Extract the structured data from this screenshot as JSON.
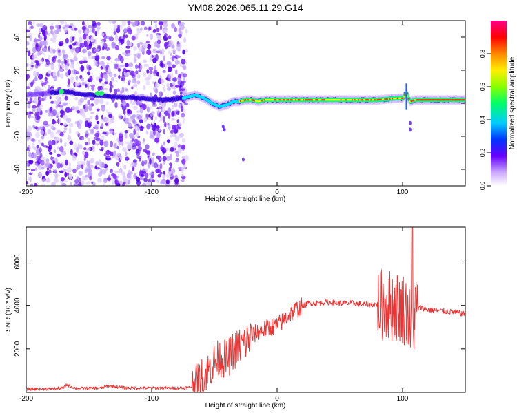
{
  "figure_title": "YM08.2026.065.11.29.G14",
  "colors": {
    "snr_line": "#ee3333",
    "ridge_colors": [
      "#00ddff",
      "#00ff88",
      "#ffee00",
      "#ff3300"
    ],
    "scatter_colors": [
      "#5500ee",
      "#7722ff",
      "#bb99ff",
      "#ddccff"
    ],
    "colormap": [
      "#ddccff",
      "#aa66ff",
      "#5500ff",
      "#0044ff",
      "#00ccff",
      "#00ff88",
      "#88ff00",
      "#ffee00",
      "#ff8800",
      "#ff0000",
      "#ff0088"
    ]
  },
  "chart_data": [
    {
      "type": "heatmap",
      "title": "YM08.2026.065.11.29.G14",
      "xlabel": "Height of straight line (km)",
      "ylabel": "Frequency (Hz)",
      "xlim": [
        -200,
        150
      ],
      "ylim": [
        -50,
        50
      ],
      "x_ticks": [
        -200,
        -100,
        0,
        100
      ],
      "x_tick_labels": [
        "-200",
        "-100",
        "0",
        "100"
      ],
      "y_ticks": [
        -40,
        -20,
        0,
        20,
        40
      ],
      "y_tick_labels": [
        "-40",
        "-20",
        "0",
        "20",
        "40"
      ],
      "noise_region_x": [
        -200,
        -72
      ],
      "ridge": {
        "x": [
          -200,
          -170,
          -150,
          -130,
          -110,
          -90,
          -75,
          -65,
          -58,
          -52,
          -46,
          -40,
          -35,
          -30,
          -25,
          -20,
          -15,
          -10,
          -5,
          0,
          20,
          40,
          60,
          80,
          95,
          100,
          103,
          106,
          110,
          130,
          150
        ],
        "frequency_hz": [
          5,
          7,
          5,
          4,
          3,
          2,
          3,
          5,
          3,
          0,
          -2,
          -1,
          1,
          1,
          2,
          2,
          1,
          2,
          2,
          2,
          2,
          2,
          2,
          2,
          3,
          3,
          6,
          1,
          2,
          2,
          2
        ]
      },
      "colorbar": {
        "label": "Normalized spectral amplitude",
        "range": [
          0,
          1
        ],
        "ticks": [
          0.0,
          0.2,
          0.4,
          0.6,
          0.8
        ],
        "tick_labels": [
          "0.0",
          "0.2",
          "0.4",
          "0.6",
          "0.8"
        ]
      }
    },
    {
      "type": "line",
      "xlabel": "Height of straight line (km)",
      "ylabel": "SNR (10 * v/v)",
      "xlim": [
        -200,
        150
      ],
      "ylim": [
        0,
        7600
      ],
      "x_ticks": [
        -200,
        -100,
        0,
        100
      ],
      "x_tick_labels": [
        "-200",
        "-100",
        "0",
        "100"
      ],
      "y_ticks": [
        2000,
        4000,
        6000
      ],
      "y_tick_labels": [
        "2000",
        "4000",
        "6000"
      ],
      "series": [
        {
          "name": "SNR",
          "x": [
            -200,
            -180,
            -170,
            -168,
            -160,
            -140,
            -135,
            -120,
            -100,
            -80,
            -70,
            -65,
            -60,
            -55,
            -50,
            -45,
            -40,
            -35,
            -30,
            -25,
            -20,
            -15,
            -10,
            -5,
            0,
            5,
            10,
            15,
            20,
            25,
            30,
            40,
            50,
            60,
            70,
            80,
            85,
            90,
            95,
            100,
            103,
            105,
            107,
            108,
            110,
            115,
            120,
            130,
            140,
            150
          ],
          "values": [
            150,
            160,
            200,
            350,
            180,
            200,
            300,
            200,
            200,
            200,
            220,
            350,
            700,
            1000,
            1400,
            1600,
            1500,
            1900,
            2100,
            2300,
            2600,
            2800,
            2900,
            3000,
            3100,
            3300,
            3600,
            3800,
            3950,
            4100,
            4100,
            4150,
            4100,
            4100,
            4050,
            4050,
            4000,
            4000,
            3950,
            3900,
            3800,
            3500,
            2600,
            3000,
            3800,
            3900,
            3800,
            3750,
            3700,
            3600
          ]
        }
      ]
    }
  ]
}
